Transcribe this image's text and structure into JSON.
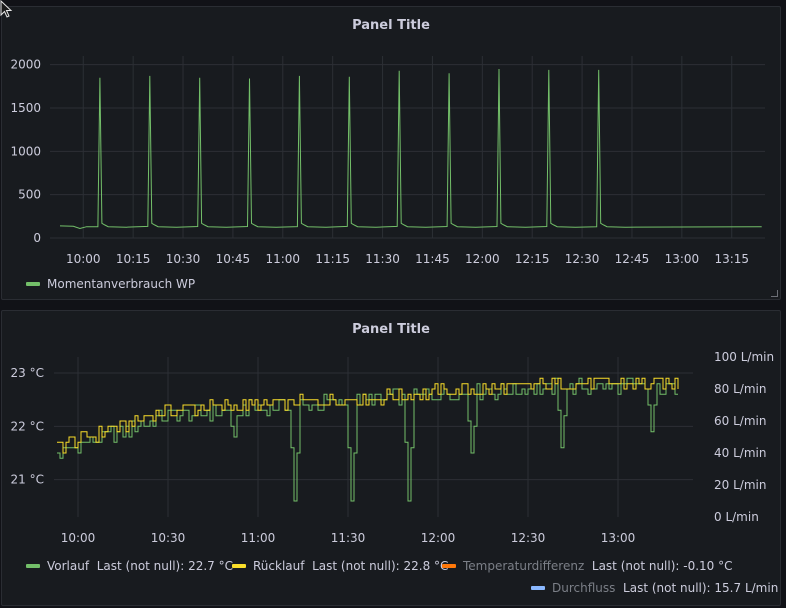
{
  "panel1": {
    "title": "Panel Title",
    "legend": [
      {
        "label": "Momentanverbrauch WP",
        "color": "#73bf69"
      }
    ]
  },
  "panel2": {
    "title": "Panel Title",
    "legend_row1": [
      {
        "label": "Vorlauf",
        "stat": "Last (not null): 22.7 °C",
        "color": "#73bf69",
        "dim": false
      },
      {
        "label": "Rücklauf",
        "stat": "Last (not null): 22.8 °C",
        "color": "#fade2a",
        "dim": false
      },
      {
        "label": "Temperaturdifferenz",
        "stat": "Last (not null): -0.10 °C",
        "color": "#ff780a",
        "dim": true
      }
    ],
    "legend_row2": [
      {
        "label": "Durchfluss",
        "stat": "Last (not null): 15.7 L/min",
        "color": "#8ab8ff",
        "dim": true
      }
    ]
  },
  "chart_data": [
    {
      "type": "line",
      "title": "Panel Title",
      "y_ticks": [
        "0",
        "500",
        "1000",
        "1500",
        "2000"
      ],
      "ylim": [
        0,
        2100
      ],
      "x_ticks": [
        "10:00",
        "10:15",
        "10:30",
        "10:45",
        "11:00",
        "11:15",
        "11:30",
        "11:45",
        "12:00",
        "12:15",
        "12:30",
        "12:45",
        "13:00",
        "13:15"
      ],
      "xlim": [
        "09:50",
        "13:25"
      ],
      "grid": true,
      "legend_position": "bottom-left",
      "series": [
        {
          "name": "Momentanverbrauch WP",
          "color": "#73bf69",
          "baseline": 130,
          "peaks": [
            {
              "t": "10:05",
              "v": 1850
            },
            {
              "t": "10:20",
              "v": 1870
            },
            {
              "t": "10:35",
              "v": 1850
            },
            {
              "t": "10:50",
              "v": 1840
            },
            {
              "t": "11:05",
              "v": 1870
            },
            {
              "t": "11:20",
              "v": 1860
            },
            {
              "t": "11:35",
              "v": 1930
            },
            {
              "t": "11:50",
              "v": 1900
            },
            {
              "t": "12:05",
              "v": 1950
            },
            {
              "t": "12:20",
              "v": 1940
            },
            {
              "t": "12:35",
              "v": 1940
            }
          ]
        }
      ]
    },
    {
      "type": "line",
      "title": "Panel Title",
      "y_ticks_left": [
        "21 °C",
        "22 °C",
        "23 °C"
      ],
      "ylim_left": [
        20.3,
        23.3
      ],
      "y_ticks_right": [
        "0 L/min",
        "20 L/min",
        "40 L/min",
        "60 L/min",
        "80 L/min",
        "100 L/min"
      ],
      "ylim_right": [
        0,
        100
      ],
      "x_ticks": [
        "10:00",
        "10:30",
        "11:00",
        "11:30",
        "12:00",
        "12:30",
        "13:00"
      ],
      "xlim": [
        "09:52",
        "13:25"
      ],
      "grid": true,
      "legend_position": "bottom",
      "series": [
        {
          "name": "Vorlauf",
          "color": "#73bf69",
          "trend": [
            {
              "t": "09:53",
              "v": 21.5
            },
            {
              "t": "10:30",
              "v": 22.2
            },
            {
              "t": "11:00",
              "v": 22.35
            },
            {
              "t": "11:30",
              "v": 22.45
            },
            {
              "t": "12:00",
              "v": 22.6
            },
            {
              "t": "12:30",
              "v": 22.7
            },
            {
              "t": "13:05",
              "v": 22.75
            },
            {
              "t": "13:20",
              "v": 22.7
            }
          ],
          "dips": [
            {
              "t": "10:52",
              "v": 21.8
            },
            {
              "t": "11:12",
              "v": 20.6
            },
            {
              "t": "11:31",
              "v": 20.6
            },
            {
              "t": "11:50",
              "v": 20.6
            },
            {
              "t": "12:11",
              "v": 21.5
            },
            {
              "t": "12:41",
              "v": 21.6
            },
            {
              "t": "13:11",
              "v": 21.9
            }
          ]
        },
        {
          "name": "Rücklauf",
          "color": "#fade2a",
          "trend": [
            {
              "t": "09:53",
              "v": 21.6
            },
            {
              "t": "10:30",
              "v": 22.3
            },
            {
              "t": "11:00",
              "v": 22.4
            },
            {
              "t": "11:30",
              "v": 22.5
            },
            {
              "t": "12:00",
              "v": 22.65
            },
            {
              "t": "12:30",
              "v": 22.75
            },
            {
              "t": "13:05",
              "v": 22.8
            },
            {
              "t": "13:20",
              "v": 22.8
            }
          ]
        }
      ]
    }
  ]
}
